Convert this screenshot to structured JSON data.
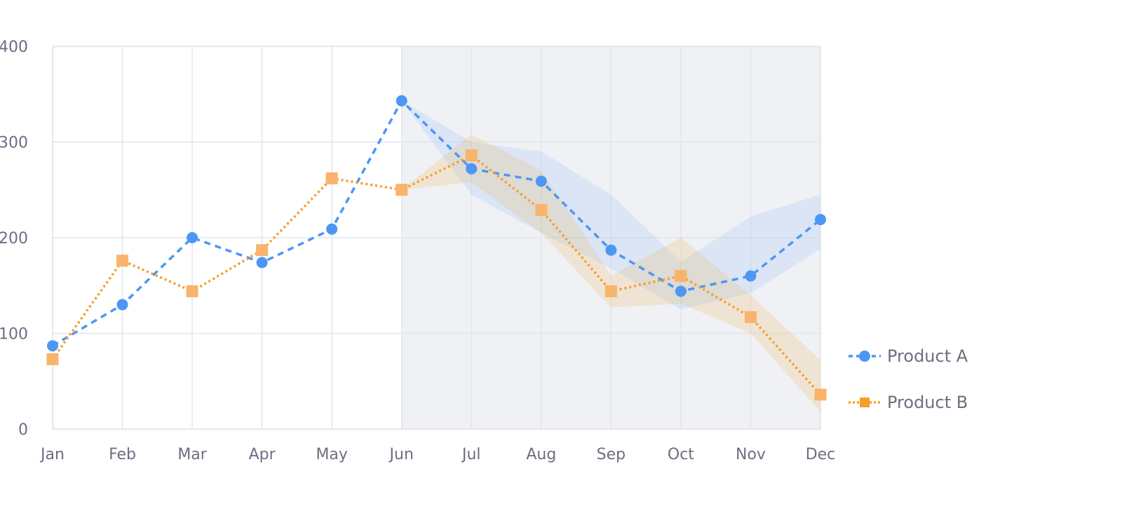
{
  "chart_data": {
    "type": "line",
    "title": "",
    "xlabel": "",
    "ylabel": "",
    "categories": [
      "Jan",
      "Feb",
      "Mar",
      "Apr",
      "May",
      "Jun",
      "Jul",
      "Aug",
      "Sep",
      "Oct",
      "Nov",
      "Dec"
    ],
    "ylim": [
      0,
      400
    ],
    "yticks": [
      0,
      100,
      200,
      300,
      400
    ],
    "grid": true,
    "legend_position": "right",
    "forecast_start": "Jun",
    "series": [
      {
        "name": "Product A",
        "color": "#4c97f3",
        "marker": "circle",
        "line_style": "dashed",
        "values": [
          87,
          130,
          200,
          174,
          209,
          343,
          272,
          259,
          187,
          144,
          160,
          219
        ],
        "band_lower": [
          null,
          null,
          null,
          null,
          null,
          343,
          245,
          205,
          168,
          125,
          142,
          188
        ],
        "band_upper": [
          null,
          null,
          null,
          null,
          null,
          343,
          300,
          290,
          245,
          175,
          222,
          245
        ]
      },
      {
        "name": "Product B",
        "color": "#f5a02a",
        "marker": "square",
        "line_style": "dotted",
        "values": [
          73,
          176,
          144,
          187,
          262,
          250,
          286,
          229,
          144,
          160,
          117,
          36
        ],
        "band_lower": [
          null,
          null,
          null,
          null,
          null,
          250,
          258,
          205,
          127,
          131,
          100,
          18
        ],
        "band_upper": [
          null,
          null,
          null,
          null,
          null,
          250,
          308,
          270,
          160,
          200,
          140,
          72
        ]
      }
    ]
  }
}
